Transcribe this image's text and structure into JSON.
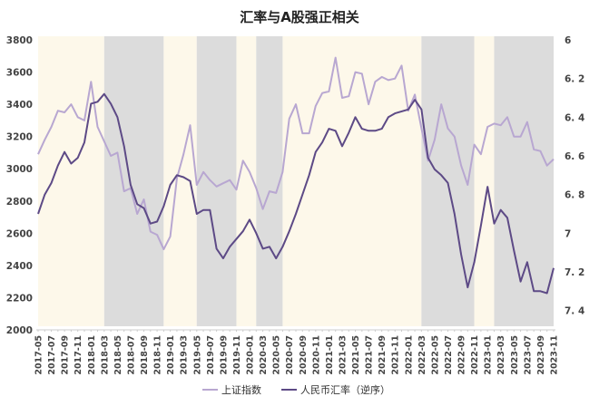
{
  "chart_data": {
    "type": "line",
    "title": "汇率与A股强正相关",
    "x": [
      "2017-05",
      "2017-06",
      "2017-07",
      "2017-08",
      "2017-09",
      "2017-10",
      "2017-11",
      "2017-12",
      "2018-01",
      "2018-02",
      "2018-03",
      "2018-04",
      "2018-05",
      "2018-06",
      "2018-07",
      "2018-08",
      "2018-09",
      "2018-10",
      "2018-11",
      "2018-12",
      "2019-01",
      "2019-02",
      "2019-03",
      "2019-04",
      "2019-05",
      "2019-06",
      "2019-07",
      "2019-08",
      "2019-09",
      "2019-10",
      "2019-11",
      "2019-12",
      "2020-01",
      "2020-02",
      "2020-03",
      "2020-04",
      "2020-05",
      "2020-06",
      "2020-07",
      "2020-08",
      "2020-09",
      "2020-10",
      "2020-11",
      "2020-12",
      "2021-01",
      "2021-02",
      "2021-03",
      "2021-04",
      "2021-05",
      "2021-06",
      "2021-07",
      "2021-08",
      "2021-09",
      "2021-10",
      "2021-11",
      "2021-12",
      "2022-01",
      "2022-02",
      "2022-03",
      "2022-04",
      "2022-05",
      "2022-06",
      "2022-07",
      "2022-08",
      "2022-09",
      "2022-10",
      "2022-11",
      "2022-12",
      "2023-01",
      "2023-02",
      "2023-03",
      "2023-04",
      "2023-05",
      "2023-06",
      "2023-07",
      "2023-08",
      "2023-09",
      "2023-10",
      "2023-11"
    ],
    "x_tick_labels": [
      "2017-05",
      "2017-07",
      "2017-09",
      "2017-11",
      "2018-01",
      "2018-03",
      "2018-05",
      "2018-07",
      "2018-09",
      "2018-11",
      "2019-01",
      "2019-03",
      "2019-05",
      "2019-07",
      "2019-09",
      "2019-11",
      "2020-01",
      "2020-03",
      "2020-05",
      "2020-07",
      "2020-09",
      "2020-11",
      "2021-01",
      "2021-03",
      "2021-05",
      "2021-07",
      "2021-09",
      "2021-11",
      "2022-01",
      "2022-03",
      "2022-05",
      "2022-07",
      "2022-09",
      "2022-11",
      "2023-01",
      "2023-03",
      "2023-05",
      "2023-07",
      "2023-09",
      "2023-11"
    ],
    "left_axis": {
      "min": 2000,
      "max": 3800,
      "ticks": [
        "2000",
        "2200",
        "2400",
        "2600",
        "2800",
        "3000",
        "3200",
        "3400",
        "3600",
        "3800"
      ]
    },
    "right_axis": {
      "min": 6,
      "max": 7.5,
      "reversed": true,
      "ticks": [
        "6",
        "6.2",
        "6.4",
        "6.6",
        "6.8",
        "7",
        "7.2",
        "7.4"
      ]
    },
    "series": [
      {
        "name": "上证指数",
        "axis": "left",
        "color": "#b8a7d1",
        "values": [
          3090,
          3180,
          3260,
          3360,
          3350,
          3400,
          3320,
          3300,
          3540,
          3260,
          3170,
          3080,
          3100,
          2860,
          2880,
          2720,
          2810,
          2610,
          2590,
          2500,
          2580,
          2940,
          3090,
          3270,
          2900,
          2980,
          2930,
          2890,
          2910,
          2930,
          2870,
          3050,
          2980,
          2880,
          2750,
          2860,
          2850,
          2980,
          3310,
          3400,
          3220,
          3220,
          3390,
          3470,
          3480,
          3690,
          3440,
          3450,
          3600,
          3590,
          3400,
          3540,
          3570,
          3550,
          3560,
          3640,
          3360,
          3460,
          3250,
          3050,
          3180,
          3400,
          3250,
          3200,
          3020,
          2900,
          3150,
          3090,
          3260,
          3280,
          3270,
          3320,
          3200,
          3200,
          3290,
          3120,
          3110,
          3020,
          3060
        ]
      },
      {
        "name": "人民币汇率（逆序）",
        "axis": "right",
        "color": "#5d4a86",
        "values": [
          6.9,
          6.8,
          6.74,
          6.65,
          6.58,
          6.64,
          6.61,
          6.53,
          6.33,
          6.32,
          6.28,
          6.33,
          6.4,
          6.55,
          6.75,
          6.85,
          6.87,
          6.95,
          6.94,
          6.86,
          6.75,
          6.7,
          6.71,
          6.73,
          6.9,
          6.88,
          6.88,
          7.08,
          7.13,
          7.07,
          7.03,
          6.99,
          6.93,
          7.0,
          7.08,
          7.07,
          7.13,
          7.07,
          6.99,
          6.9,
          6.8,
          6.7,
          6.58,
          6.53,
          6.46,
          6.47,
          6.55,
          6.48,
          6.4,
          6.46,
          6.47,
          6.47,
          6.46,
          6.4,
          6.38,
          6.37,
          6.36,
          6.31,
          6.36,
          6.61,
          6.67,
          6.7,
          6.74,
          6.9,
          7.11,
          7.28,
          7.15,
          6.96,
          6.76,
          6.95,
          6.88,
          6.92,
          7.09,
          7.25,
          7.15,
          7.3,
          7.3,
          7.31,
          7.18
        ]
      }
    ],
    "shaded_periods": [
      {
        "start": "2017-05",
        "end": "2018-03",
        "color": "#fdf8ea"
      },
      {
        "start": "2018-03",
        "end": "2018-12",
        "color": "#dcdcdc"
      },
      {
        "start": "2018-12",
        "end": "2019-05",
        "color": "#fdf8ea"
      },
      {
        "start": "2019-05",
        "end": "2019-11",
        "color": "#dcdcdc"
      },
      {
        "start": "2019-11",
        "end": "2020-02",
        "color": "#fdf8ea"
      },
      {
        "start": "2020-02",
        "end": "2020-06",
        "color": "#dcdcdc"
      },
      {
        "start": "2020-06",
        "end": "2022-03",
        "color": "#fdf8ea"
      },
      {
        "start": "2022-03",
        "end": "2022-11",
        "color": "#dcdcdc"
      },
      {
        "start": "2022-11",
        "end": "2023-02",
        "color": "#fdf8ea"
      },
      {
        "start": "2023-02",
        "end": "2023-11",
        "color": "#dcdcdc"
      }
    ],
    "legend_position": "bottom",
    "grid": false
  }
}
